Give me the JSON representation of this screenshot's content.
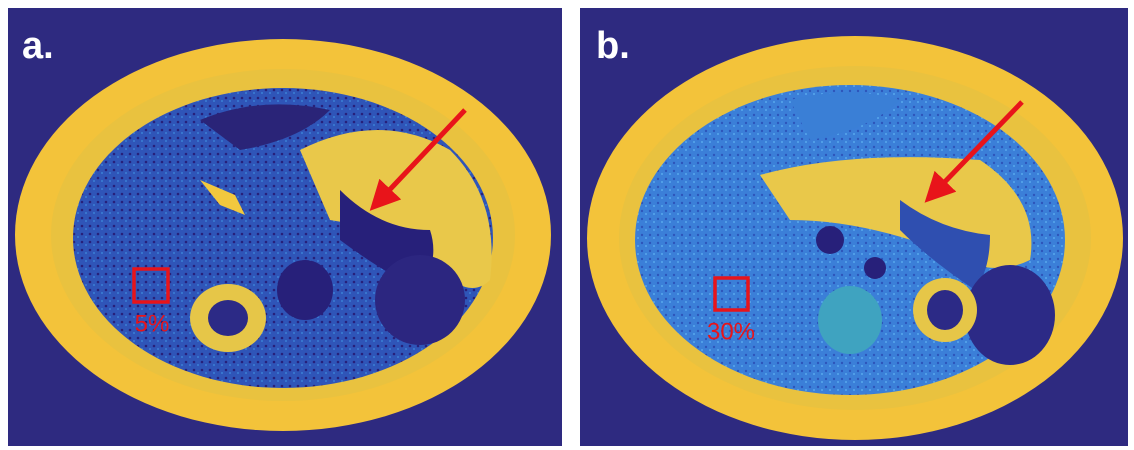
{
  "panels": [
    {
      "label": "a.",
      "roi_label": "5%"
    },
    {
      "label": "b.",
      "roi_label": "30%"
    }
  ]
}
